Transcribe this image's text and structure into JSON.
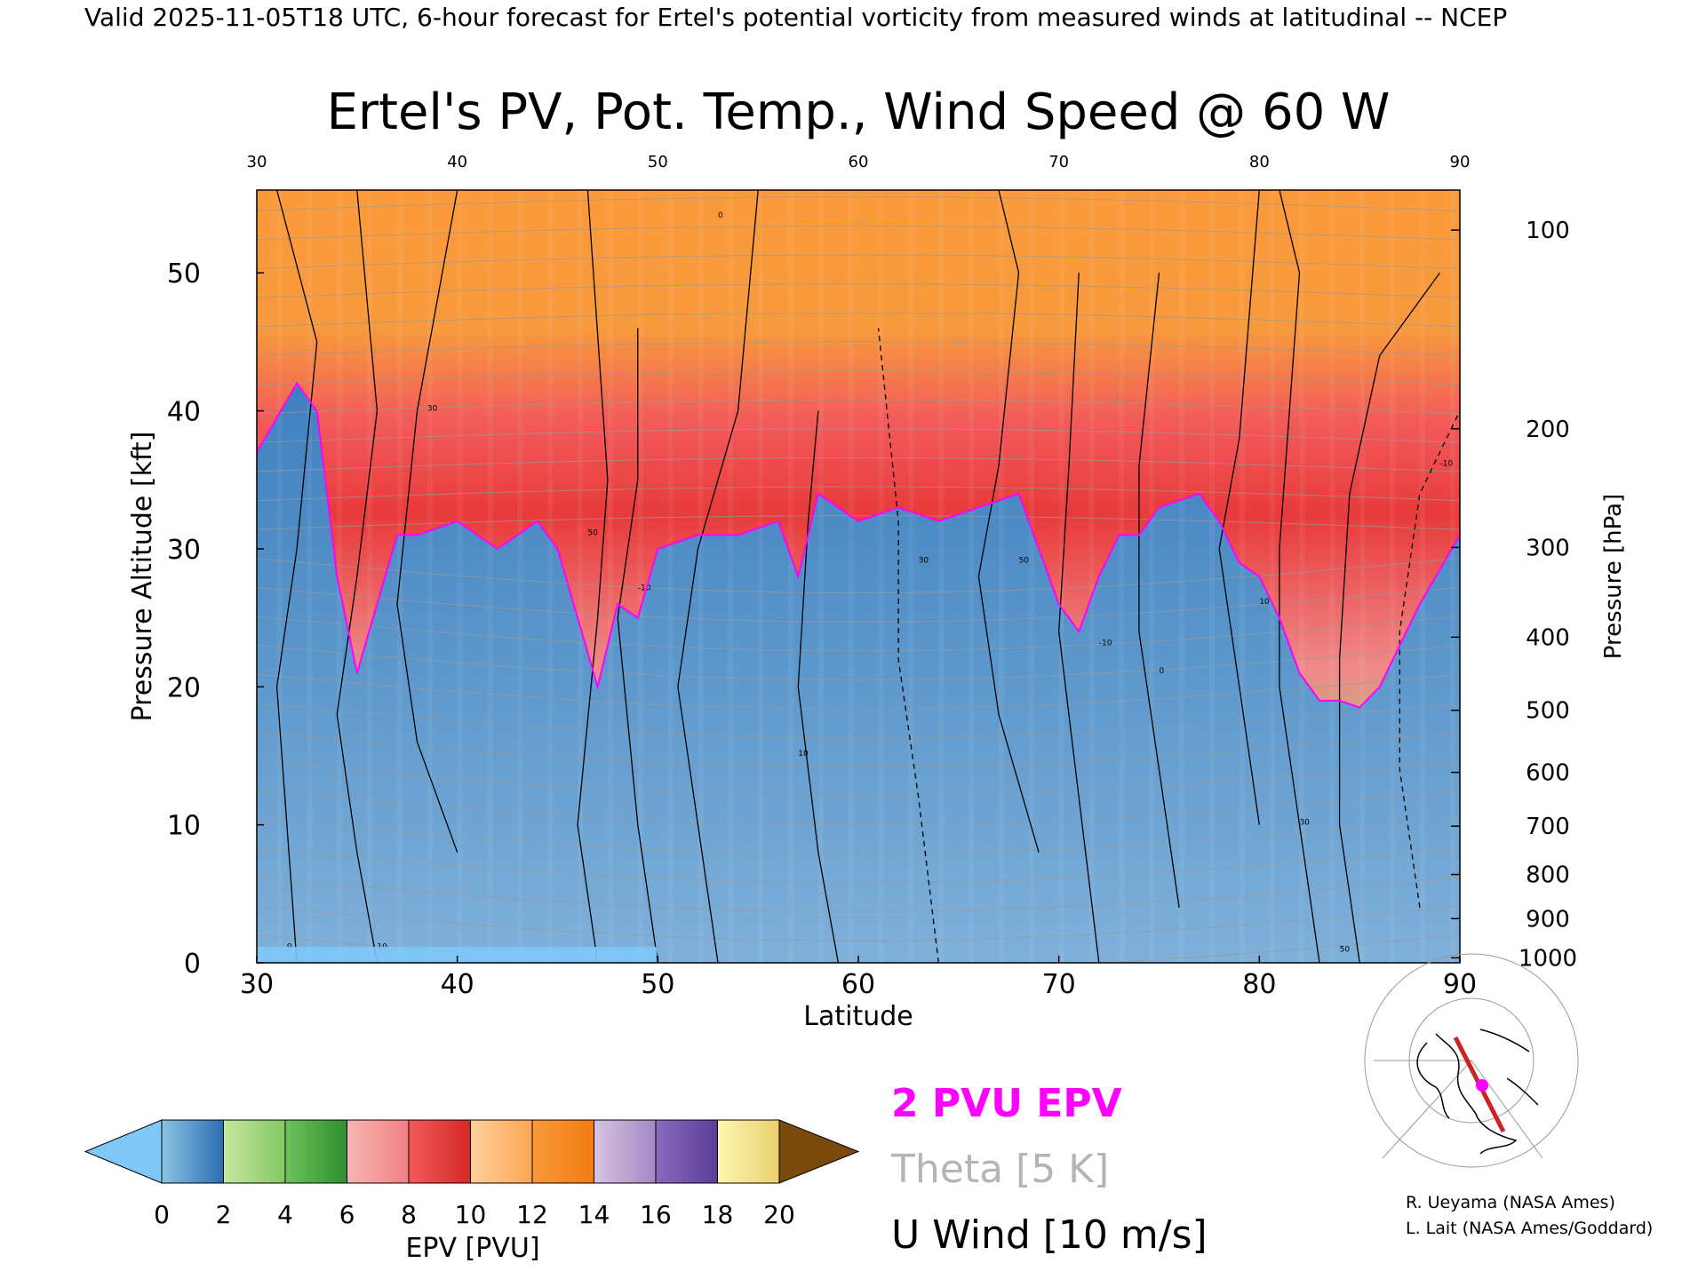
{
  "header": {
    "valid_line": "Valid 2025-11-05T18 UTC, 6-hour forecast for Ertel's potential vorticity from measured winds at latitudinal -- NCEP"
  },
  "chart_data": {
    "type": "heatmap",
    "title": "Ertel's PV, Pot. Temp., Wind Speed @ 60 W",
    "xlabel": "Latitude",
    "ylabel_left": "Pressure Altitude [kft]",
    "ylabel_right": "Pressure [hPa]",
    "x_ticks": [
      30,
      40,
      50,
      60,
      70,
      80,
      90
    ],
    "x_tick_labels": [
      "30",
      "40",
      "50",
      "60",
      "70",
      "80",
      "90"
    ],
    "y_ticks_kft": [
      0,
      10,
      20,
      30,
      40,
      50
    ],
    "y_tick_labels": [
      "0",
      "10",
      "20",
      "30",
      "40",
      "50"
    ],
    "xlim": [
      30,
      90
    ],
    "ylim_kft": [
      0,
      56
    ],
    "pressure_levels_hpa": [
      100,
      200,
      300,
      400,
      500,
      600,
      700,
      800,
      900,
      1000
    ],
    "pressure_altitude_kft": [
      53.1,
      38.7,
      30.1,
      23.6,
      18.3,
      13.8,
      9.9,
      6.4,
      3.2,
      0.36
    ],
    "pressure_tick_labels": [
      "100",
      "200",
      "300",
      "400",
      "500",
      "600",
      "700",
      "800",
      "900",
      "1000"
    ],
    "two_pvu_tropopause_kft": [
      [
        30,
        37
      ],
      [
        32,
        42
      ],
      [
        33,
        40
      ],
      [
        34,
        28
      ],
      [
        35,
        21
      ],
      [
        36,
        26
      ],
      [
        37,
        31
      ],
      [
        38,
        31
      ],
      [
        40,
        32
      ],
      [
        42,
        30
      ],
      [
        44,
        32
      ],
      [
        45,
        30
      ],
      [
        46,
        25
      ],
      [
        47,
        20
      ],
      [
        48,
        26
      ],
      [
        49,
        25
      ],
      [
        50,
        30
      ],
      [
        52,
        31
      ],
      [
        54,
        31
      ],
      [
        56,
        32
      ],
      [
        57,
        28
      ],
      [
        58,
        34
      ],
      [
        60,
        32
      ],
      [
        62,
        33
      ],
      [
        64,
        32
      ],
      [
        66,
        33
      ],
      [
        68,
        34
      ],
      [
        70,
        26
      ],
      [
        71,
        24
      ],
      [
        72,
        28
      ],
      [
        73,
        31
      ],
      [
        74,
        31
      ],
      [
        75,
        33
      ],
      [
        77,
        34
      ],
      [
        78,
        32
      ],
      [
        79,
        29
      ],
      [
        80,
        28
      ],
      [
        81,
        25
      ],
      [
        82,
        21
      ],
      [
        83,
        19
      ],
      [
        84,
        19
      ],
      [
        85,
        18.5
      ],
      [
        86,
        20
      ],
      [
        88,
        26
      ],
      [
        90,
        31
      ]
    ],
    "wind_contour_labels": [
      "0",
      "10",
      "30",
      "50",
      "-10"
    ],
    "colorbar": {
      "label": "EPV [PVU]",
      "ticks": [
        0,
        2,
        4,
        6,
        8,
        10,
        12,
        14,
        16,
        18,
        20
      ],
      "tick_labels": [
        "0",
        "2",
        "4",
        "6",
        "8",
        "10",
        "12",
        "14",
        "16",
        "18",
        "20"
      ],
      "under_color": "#7fc8f8",
      "over_color": "#7a4a0c",
      "bins": [
        {
          "range": [
            0,
            2
          ],
          "from": "#8cc2e3",
          "to": "#2f6eb3"
        },
        {
          "range": [
            2,
            4
          ],
          "from": "#c7e7a0",
          "to": "#83c763"
        },
        {
          "range": [
            4,
            6
          ],
          "from": "#6ec25b",
          "to": "#2f8f2f"
        },
        {
          "range": [
            6,
            8
          ],
          "from": "#f7b5b5",
          "to": "#f08080"
        },
        {
          "range": [
            8,
            10
          ],
          "from": "#f25a5a",
          "to": "#d62828"
        },
        {
          "range": [
            10,
            12
          ],
          "from": "#fdd09a",
          "to": "#fba653"
        },
        {
          "range": [
            12,
            14
          ],
          "from": "#fb9a3a",
          "to": "#f07c10"
        },
        {
          "range": [
            14,
            16
          ],
          "from": "#d8c3e0",
          "to": "#a388c4"
        },
        {
          "range": [
            16,
            18
          ],
          "from": "#8a6ac0",
          "to": "#5a3e96"
        },
        {
          "range": [
            18,
            20
          ],
          "from": "#fff6b0",
          "to": "#e8d070"
        }
      ]
    },
    "legend": [
      {
        "label": "2 PVU EPV",
        "color": "#ff00ff"
      },
      {
        "label": "Theta [5 K]",
        "color": "#b4b4b4"
      },
      {
        "label": "U Wind [10 m/s]",
        "color": "#000000"
      }
    ],
    "map_inset": {
      "cross_section_line": "60 W",
      "line_color": "#cc2222",
      "marker_color": "#ff00ff"
    }
  },
  "credits": [
    "R. Ueyama (NASA Ames)",
    "L. Lait (NASA Ames/Goddard)"
  ]
}
